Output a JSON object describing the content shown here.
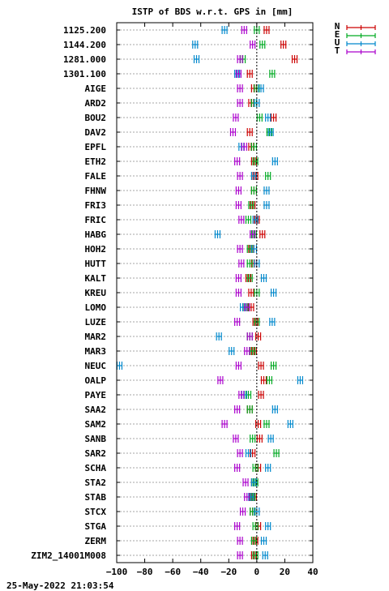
{
  "chart_data": {
    "type": "scatter",
    "title": "ISTP of BDS w.r.t. GPS in [mm]",
    "timestamp": "25-May-2022 21:03:54",
    "xlim": [
      -100,
      40
    ],
    "xticks": [
      -100,
      -80,
      -60,
      -40,
      -20,
      0,
      20,
      40
    ],
    "grid": true,
    "zero_line": true,
    "legend_position": "top-right-outside",
    "categories": [
      "1125.200",
      "1144.200",
      "1281.000",
      "1301.100",
      "AIGE",
      "ARD2",
      "BOU2",
      "DAV2",
      "EPFL",
      "ETH2",
      "FALE",
      "FHNW",
      "FRI3",
      "FRIC",
      "HABG",
      "HOH2",
      "HUTT",
      "KALT",
      "KREU",
      "LOMO",
      "LUZE",
      "MAR2",
      "MAR3",
      "NEUC",
      "OALP",
      "PAYE",
      "SAA2",
      "SAM2",
      "SANB",
      "SAR2",
      "SCHA",
      "STA2",
      "STAB",
      "STCX",
      "STGA",
      "ZERM",
      "ZIM2_14001M008"
    ],
    "series": [
      {
        "name": "N",
        "color": "#cc0000",
        "values": [
          7,
          19,
          27,
          -5,
          -2,
          -4,
          12,
          -5,
          -4,
          -2,
          -1,
          -2,
          -3,
          0,
          4,
          -4,
          -2,
          -6,
          -4,
          -4,
          -1,
          1,
          -2,
          3,
          5,
          3,
          -5,
          1,
          2,
          -3,
          1,
          -2,
          -2,
          -3,
          1,
          -1,
          -2
        ]
      },
      {
        "name": "E",
        "color": "#00aa22",
        "values": [
          0,
          4,
          -10,
          11,
          0,
          -2,
          2,
          9,
          -2,
          -1,
          8,
          -2,
          -4,
          -6,
          -2,
          -5,
          -5,
          -5,
          0,
          -8,
          0,
          -5,
          -3,
          12,
          9,
          -6,
          -5,
          7,
          -3,
          14,
          -1,
          -1,
          -3,
          -3,
          -1,
          -2,
          -1
        ]
      },
      {
        "name": "U",
        "color": "#0088cc",
        "values": [
          -23,
          -44,
          -43,
          -14,
          3,
          0,
          8,
          10,
          -11,
          13,
          -2,
          7,
          7,
          -1,
          -28,
          -2,
          0,
          5,
          12,
          -10,
          11,
          -27,
          -18,
          -98,
          31,
          -9,
          13,
          24,
          10,
          -6,
          8,
          -2,
          -4,
          0,
          8,
          5,
          6
        ]
      },
      {
        "name": "T",
        "color": "#aa00cc",
        "values": [
          -9,
          -3,
          -12,
          -13,
          -12,
          -12,
          -15,
          -17,
          -9,
          -14,
          -12,
          -13,
          -13,
          -11,
          -3,
          -12,
          -11,
          -13,
          -13,
          -7,
          -14,
          -5,
          -7,
          -13,
          -26,
          -11,
          -14,
          -23,
          -15,
          -12,
          -14,
          -8,
          -7,
          -10,
          -14,
          -12,
          -12
        ]
      }
    ]
  }
}
